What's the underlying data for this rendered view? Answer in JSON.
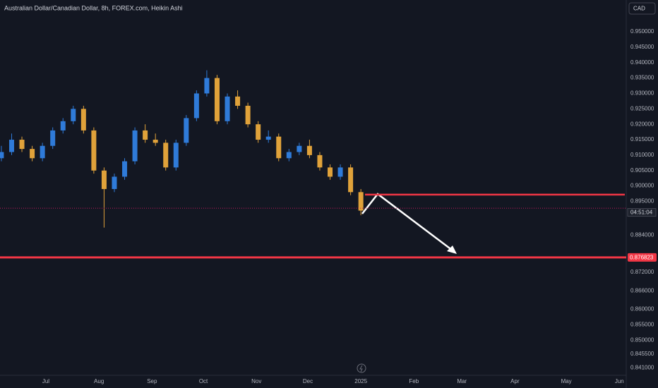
{
  "chart_data": {
    "type": "candlestick",
    "title": "Australian Dollar/Canadian Dollar, 8h, FOREX.com, Heikin Ashi",
    "currency": "CAD",
    "up_color": "#2f7bd9",
    "down_color": "#e0a23a",
    "x": [
      -26,
      -20,
      -14,
      -8,
      -2,
      4,
      10,
      16,
      22,
      28,
      34,
      40,
      46,
      52,
      58,
      64,
      70,
      76,
      82,
      88,
      94,
      100,
      106,
      112,
      118,
      124,
      130,
      136,
      142,
      148,
      154,
      160,
      166,
      172,
      178,
      184
    ],
    "open": [
      0.909,
      0.911,
      0.915,
      0.912,
      0.909,
      0.913,
      0.918,
      0.921,
      0.925,
      0.918,
      0.905,
      0.899,
      0.903,
      0.908,
      0.918,
      0.915,
      0.914,
      0.906,
      0.914,
      0.922,
      0.93,
      0.935,
      0.921,
      0.929,
      0.926,
      0.92,
      0.915,
      0.916,
      0.909,
      0.911,
      0.913,
      0.91,
      0.906,
      0.903,
      0.906,
      0.898
    ],
    "high": [
      0.913,
      0.917,
      0.916,
      0.913,
      0.914,
      0.919,
      0.922,
      0.926,
      0.926,
      0.919,
      0.906,
      0.904,
      0.909,
      0.919,
      0.92,
      0.917,
      0.915,
      0.915,
      0.923,
      0.931,
      0.9375,
      0.936,
      0.93,
      0.931,
      0.927,
      0.921,
      0.918,
      0.917,
      0.912,
      0.914,
      0.915,
      0.911,
      0.907,
      0.907,
      0.907,
      0.899
    ],
    "low": [
      0.908,
      0.91,
      0.911,
      0.908,
      0.908,
      0.912,
      0.917,
      0.92,
      0.917,
      0.904,
      0.8865,
      0.898,
      0.902,
      0.907,
      0.914,
      0.913,
      0.905,
      0.905,
      0.913,
      0.921,
      0.929,
      0.92,
      0.92,
      0.925,
      0.919,
      0.914,
      0.914,
      0.908,
      0.908,
      0.91,
      0.909,
      0.905,
      0.902,
      0.902,
      0.897,
      0.8905
    ],
    "close": [
      0.911,
      0.915,
      0.912,
      0.909,
      0.913,
      0.918,
      0.921,
      0.925,
      0.918,
      0.905,
      0.899,
      0.903,
      0.908,
      0.918,
      0.915,
      0.914,
      0.906,
      0.914,
      0.922,
      0.93,
      0.935,
      0.921,
      0.929,
      0.926,
      0.92,
      0.915,
      0.916,
      0.909,
      0.911,
      0.913,
      0.91,
      0.906,
      0.903,
      0.906,
      0.898,
      0.892
    ],
    "xlim": [
      -26.8,
      339
    ],
    "xticks": [
      {
        "value": 0,
        "label": "Jul"
      },
      {
        "value": 31,
        "label": "Aug"
      },
      {
        "value": 62,
        "label": "Sep"
      },
      {
        "value": 92,
        "label": "Oct"
      },
      {
        "value": 123,
        "label": "Nov"
      },
      {
        "value": 153,
        "label": "Dec"
      },
      {
        "value": 184,
        "label": "2025"
      },
      {
        "value": 215,
        "label": "Feb"
      },
      {
        "value": 243,
        "label": "Mar"
      },
      {
        "value": 274,
        "label": "Apr"
      },
      {
        "value": 304,
        "label": "May"
      },
      {
        "value": 335,
        "label": "Jun"
      }
    ],
    "ylim": [
      0.8386,
      0.9603
    ],
    "yticks": [
      {
        "value": 0.95,
        "label": "0.950000"
      },
      {
        "value": 0.945,
        "label": "0.945000"
      },
      {
        "value": 0.94,
        "label": "0.940000"
      },
      {
        "value": 0.935,
        "label": "0.935000"
      },
      {
        "value": 0.93,
        "label": "0.930000"
      },
      {
        "value": 0.925,
        "label": "0.925000"
      },
      {
        "value": 0.92,
        "label": "0.920000"
      },
      {
        "value": 0.915,
        "label": "0.915000"
      },
      {
        "value": 0.91,
        "label": "0.910000"
      },
      {
        "value": 0.905,
        "label": "0.905000"
      },
      {
        "value": 0.9,
        "label": "0.900000"
      },
      {
        "value": 0.895,
        "label": "0.895000"
      },
      {
        "value": 0.884,
        "label": "0.884000"
      },
      {
        "value": 0.872,
        "label": "0.872000"
      },
      {
        "value": 0.866,
        "label": "0.866000"
      },
      {
        "value": 0.86,
        "label": "0.860000"
      },
      {
        "value": 0.855,
        "label": "0.855000"
      },
      {
        "value": 0.85,
        "label": "0.850000"
      },
      {
        "value": 0.8455,
        "label": "0.845500"
      },
      {
        "value": 0.841,
        "label": "0.841000"
      }
    ],
    "last_price": 0.8928,
    "countdown": "04:51:04",
    "resistance": 0.8972,
    "target": {
      "value": 0.876823,
      "label": "0.876823"
    },
    "level_color": "#f23645"
  }
}
